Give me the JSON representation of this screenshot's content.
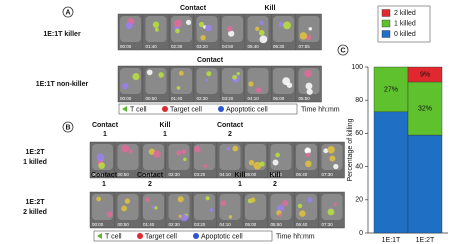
{
  "panels": [
    {
      "label": "A",
      "rows": [
        {
          "label": [
            "1E:1T killer"
          ],
          "color": "#5ab82e",
          "timestamps": [
            "00:00",
            "01:40",
            "02:30",
            "03:20",
            "04:50",
            "05:40",
            "06:30",
            "07:55"
          ],
          "annotations": [
            [
              "Contact"
            ],
            [
              "Kill"
            ]
          ]
        },
        {
          "label": [
            "1E:1T non-killer"
          ],
          "color": "#2b3f9e",
          "timestamps": [
            "00:00",
            "00:50",
            "01:40",
            "02:30",
            "03:20",
            "04:10",
            "05:00",
            "05:50"
          ],
          "annotations": [
            [
              "Contact"
            ]
          ]
        }
      ],
      "legend": [
        "T cell",
        "Target cell",
        "Apoptotic cell"
      ],
      "time_label": "Time hh:mm"
    },
    {
      "label": "B",
      "rows": [
        {
          "label": [
            "1E:2T",
            "1 killed"
          ],
          "color": "#5ab82e",
          "timestamps": [
            "00:00",
            "00:50",
            "01:40",
            "02:30",
            "03:20",
            "04:10",
            "05:00",
            "05:50",
            "06:40",
            "07:30"
          ],
          "annotations": [
            [
              "Contact",
              "1"
            ],
            [
              "Kill",
              "1"
            ],
            [
              "Contact",
              "2"
            ]
          ]
        },
        {
          "label": [
            "1E:2T",
            "2 killed"
          ],
          "color": "#e0282e",
          "timestamps": [
            "00:00",
            "00:50",
            "01:40",
            "02:30",
            "03:20",
            "04:10",
            "05:00",
            "05:50",
            "06:40",
            "07:30"
          ],
          "annotations": [
            [
              "Contact",
              "1"
            ],
            [
              "Contact",
              "2"
            ],
            [
              "Kill",
              "1"
            ],
            [
              "Kill",
              "2"
            ]
          ]
        }
      ],
      "legend": [
        "T cell",
        "Target cell",
        "Apoptotic cell"
      ],
      "time_label": "Time hh:mm"
    }
  ],
  "chart_data": {
    "type": "stacked_bar",
    "panel_label": "C",
    "y_label": "Percentage of killing",
    "categories": [
      "1E:1T",
      "1E:2T"
    ],
    "series": [
      {
        "name": "0 killed",
        "color": "#1f6fc5",
        "values": [
          73,
          59
        ]
      },
      {
        "name": "1 killed",
        "color": "#5fc12e",
        "values": [
          27,
          32
        ],
        "value_labels": [
          "27%",
          "32%"
        ]
      },
      {
        "name": "2 killed",
        "color": "#e0282e",
        "values": [
          0,
          9
        ],
        "value_labels": [
          null,
          "9%"
        ]
      }
    ],
    "ylim": [
      0,
      100
    ],
    "yticks": [
      0,
      20,
      40,
      60,
      80,
      100
    ]
  }
}
